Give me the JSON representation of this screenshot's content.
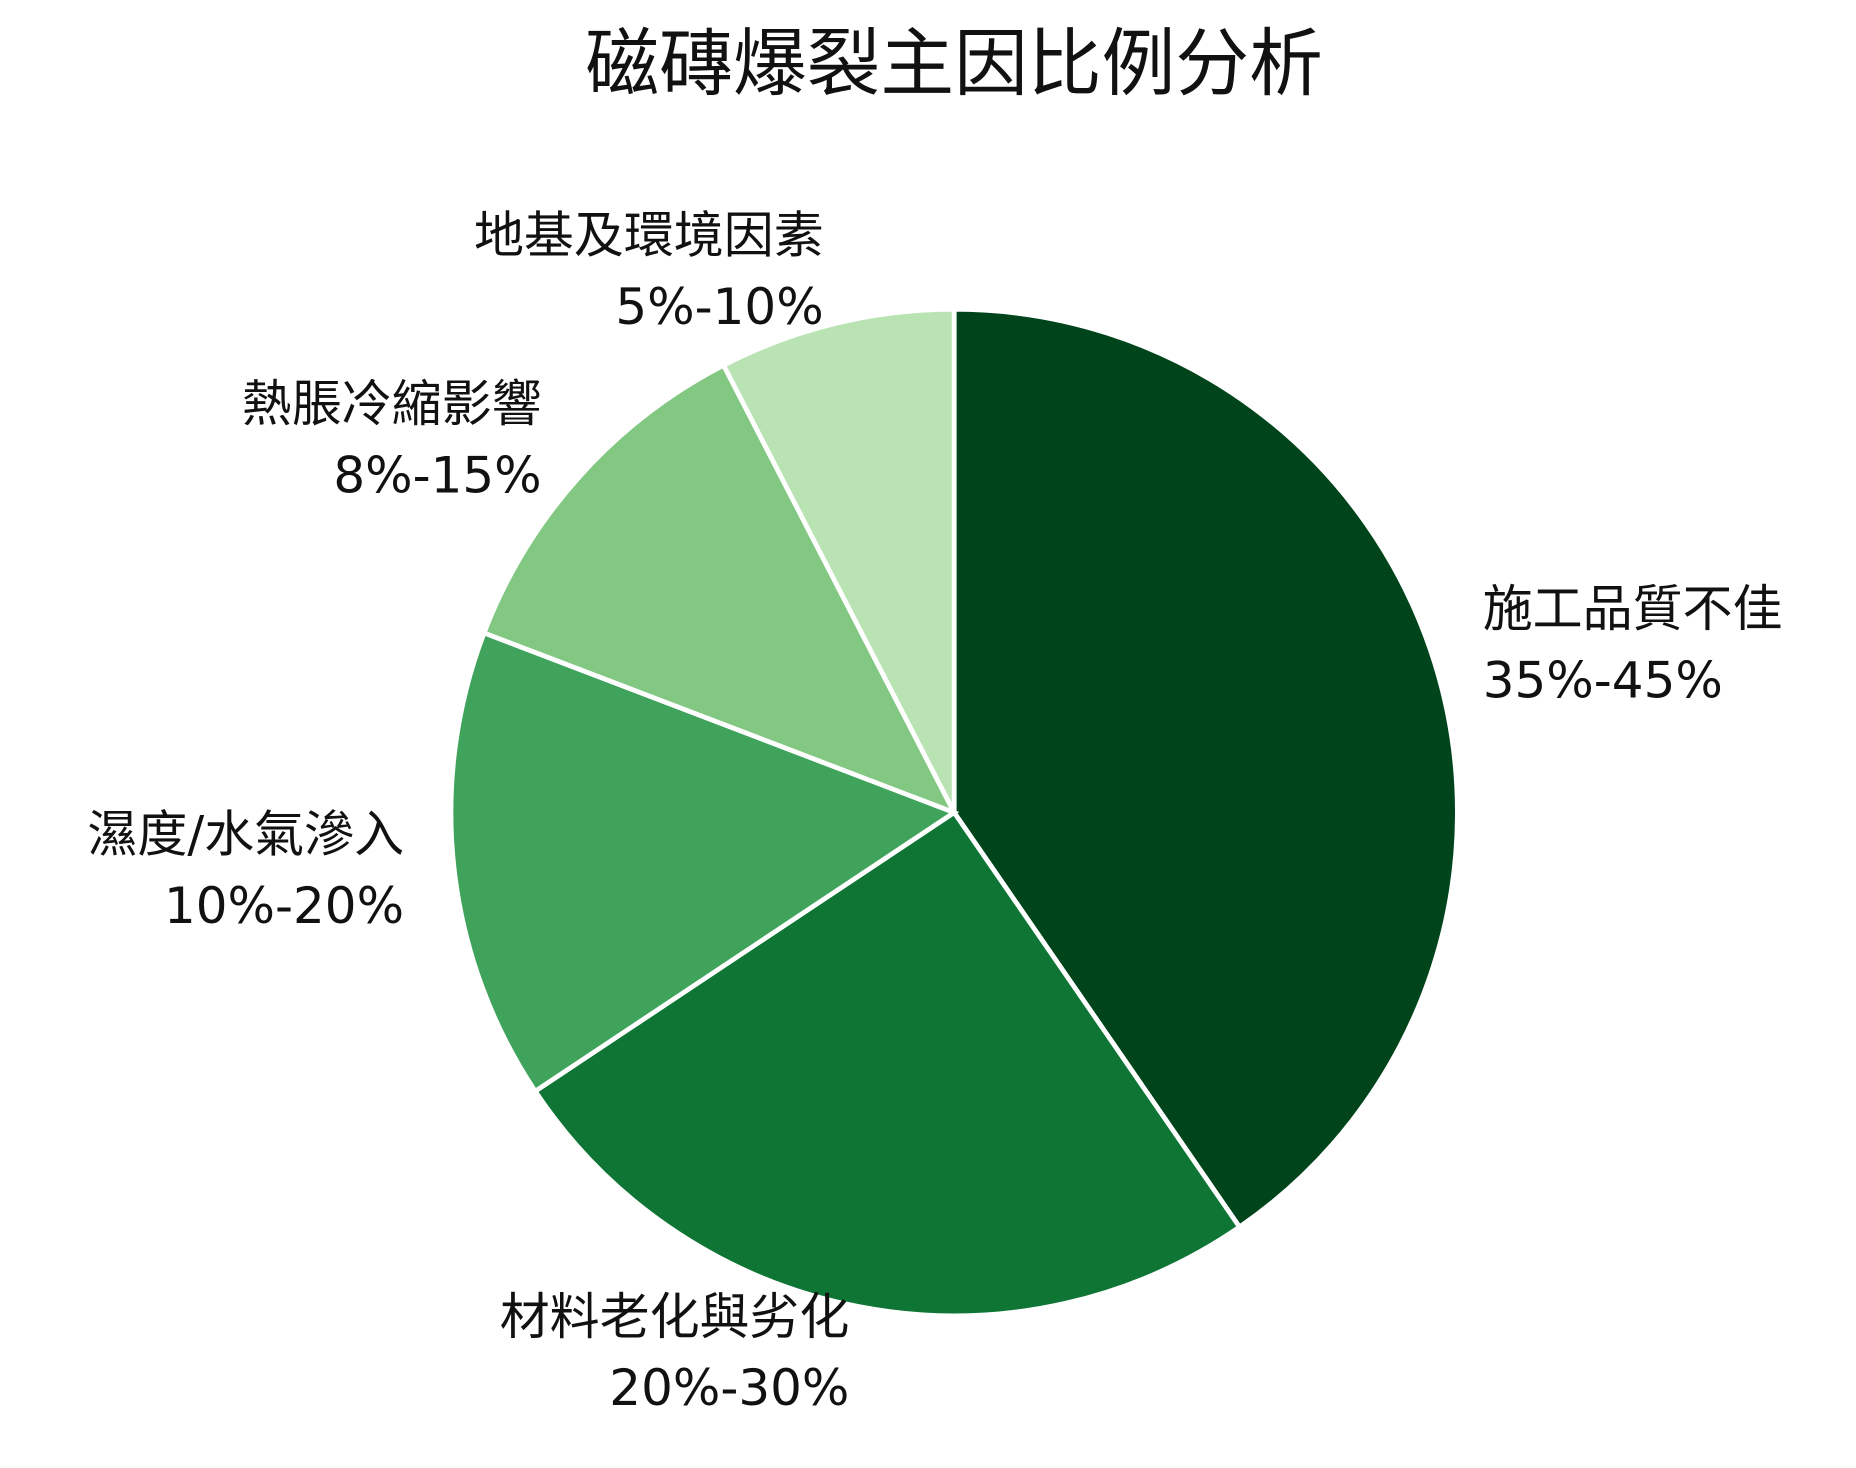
{
  "chart_data": {
    "type": "pie",
    "title": "磁磚爆裂主因比例分析",
    "categories": [
      "施工品質不佳",
      "材料老化與劣化",
      "濕度/水氣滲入",
      "熱脹冷縮影響",
      "地基及環境因素"
    ],
    "values": [
      40,
      25,
      15,
      11.5,
      7.5
    ],
    "value_labels": [
      "35%-45%",
      "20%-30%",
      "10%-20%",
      "8%-15%",
      "5%-10%"
    ],
    "colors": [
      "#00441b",
      "#0e7535",
      "#3fa35b",
      "#82c882",
      "#b9e3b3"
    ]
  }
}
